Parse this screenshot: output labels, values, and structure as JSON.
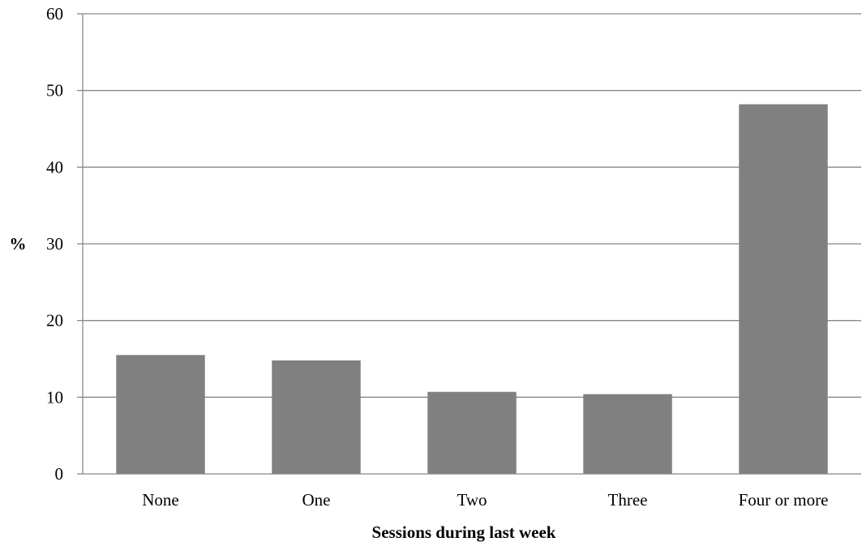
{
  "chart_data": {
    "type": "bar",
    "categories": [
      "None",
      "One",
      "Two",
      "Three",
      "Four or more"
    ],
    "values": [
      15.5,
      14.8,
      10.7,
      10.4,
      48.2
    ],
    "title": "",
    "xlabel": "Sessions during last week",
    "ylabel": "%",
    "ylim": [
      0,
      60
    ],
    "yticks": [
      "0",
      "10",
      "20",
      "30",
      "40",
      "50",
      "60"
    ],
    "grid": true,
    "bar_color": "#808080",
    "grid_color": "#888888"
  }
}
